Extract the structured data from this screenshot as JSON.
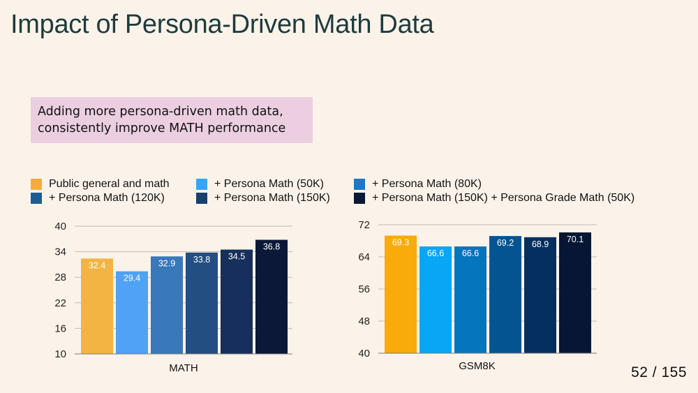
{
  "slide": {
    "title": "Impact of Persona-Driven Math Data",
    "callout_lines": [
      "Adding more persona-driven math data,",
      "consistently improve MATH performance"
    ],
    "page_number": "52 / 155"
  },
  "legend": [
    {
      "label": "Public general and math",
      "color": "#f4ad3a"
    },
    {
      "label": "+ Persona Math (50K)",
      "color": "#36a5f5"
    },
    {
      "label": "+ Persona Math (80K)",
      "color": "#1f78c1"
    },
    {
      "label": "+ Persona Math (120K)",
      "color": "#1d5d94"
    },
    {
      "label": "+ Persona Math (150K)",
      "color": "#17406c"
    },
    {
      "label": "+ Persona Math (150K) + Persona Grade Math (50K)",
      "color": "#0d1838"
    }
  ],
  "chart_data": [
    {
      "type": "bar",
      "xlabel": "MATH",
      "categories": [
        "MATH"
      ],
      "ylim": [
        10,
        40
      ],
      "yticks": [
        10,
        16,
        22,
        28,
        34,
        40
      ],
      "grid": true,
      "series": [
        {
          "name": "Public general and math",
          "values": [
            32.4
          ],
          "color": "#f2b442"
        },
        {
          "name": "+ Persona Math (50K)",
          "values": [
            29.4
          ],
          "color": "#4fa2f6"
        },
        {
          "name": "+ Persona Math (80K)",
          "values": [
            32.9
          ],
          "color": "#3878bb"
        },
        {
          "name": "+ Persona Math (120K)",
          "values": [
            33.8
          ],
          "color": "#234e82"
        },
        {
          "name": "+ Persona Math (150K)",
          "values": [
            34.5
          ],
          "color": "#172f5c"
        },
        {
          "name": "+ Persona Math (150K) + Persona Grade Math (50K)",
          "values": [
            36.8
          ],
          "color": "#0b1838"
        }
      ]
    },
    {
      "type": "bar",
      "xlabel": "GSM8K",
      "categories": [
        "GSM8K"
      ],
      "ylim": [
        40,
        72
      ],
      "yticks": [
        40,
        48,
        56,
        64,
        72
      ],
      "grid": true,
      "series": [
        {
          "name": "Public general and math",
          "values": [
            69.3
          ],
          "color": "#f9ab0b"
        },
        {
          "name": "+ Persona Math (50K)",
          "values": [
            66.6
          ],
          "color": "#09a6f5"
        },
        {
          "name": "+ Persona Math (80K)",
          "values": [
            66.6
          ],
          "color": "#0575bd"
        },
        {
          "name": "+ Persona Math (120K)",
          "values": [
            69.2
          ],
          "color": "#055492"
        },
        {
          "name": "+ Persona Math (150K)",
          "values": [
            68.9
          ],
          "color": "#052f5e"
        },
        {
          "name": "+ Persona Math (150K) + Persona Grade Math (50K)",
          "values": [
            70.1
          ],
          "color": "#071634"
        }
      ]
    }
  ]
}
